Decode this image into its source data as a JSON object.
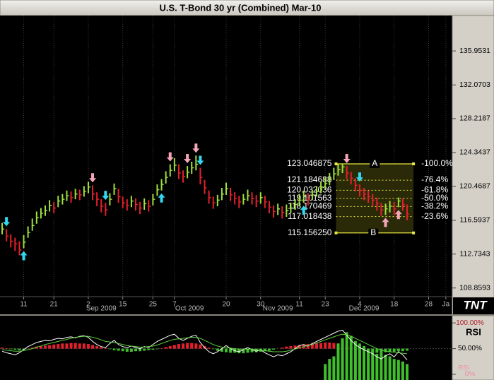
{
  "chart_data": [
    {
      "type": "ohlc",
      "title": "U.S. T-Bond 30 yr (Combined) Mar-10",
      "up_color": "#9fdf3c",
      "down_color": "#e3202c",
      "ylim": [
        107.87,
        140.0
      ],
      "yticks": [
        135.9531,
        132.0703,
        128.2187,
        124.3437,
        120.4687,
        116.5937,
        112.7343,
        108.8593
      ],
      "xlim": [
        -0.5,
        104.5
      ],
      "xticks": [
        {
          "value": 5,
          "label": "11"
        },
        {
          "value": 12,
          "label": "21"
        },
        {
          "value": 20,
          "label": "2"
        },
        {
          "value": 28,
          "label": "15"
        },
        {
          "value": 35,
          "label": "25"
        },
        {
          "value": 40,
          "label": "7"
        },
        {
          "value": 52,
          "label": "20"
        },
        {
          "value": 60,
          "label": "30"
        },
        {
          "value": 69,
          "label": "11"
        },
        {
          "value": 75,
          "label": "23"
        },
        {
          "value": 83,
          "label": "4"
        },
        {
          "value": 91,
          "label": "18"
        },
        {
          "value": 99,
          "label": "28"
        },
        {
          "value": 103,
          "label": "Ja"
        }
      ],
      "month_labels": [
        {
          "value": 23,
          "label": "Sep 2009"
        },
        {
          "value": 43.5,
          "label": "Oct 2009"
        },
        {
          "value": 64,
          "label": "Nov 2009"
        },
        {
          "value": 84,
          "label": "Dec 2009"
        }
      ],
      "grid": true,
      "close": [
        115.6,
        114.8,
        114.2,
        113.9,
        113.2,
        114.1,
        115.2,
        116.0,
        116.9,
        117.4,
        117.7,
        118.3,
        118.0,
        118.8,
        119.0,
        119.4,
        119.2,
        119.6,
        119.5,
        119.9,
        120.4,
        119.6,
        119.0,
        118.2,
        117.8,
        119.0,
        120.2,
        119.3,
        118.6,
        118.3,
        118.8,
        118.4,
        118.0,
        118.5,
        118.2,
        119.0,
        120.1,
        120.7,
        121.5,
        122.3,
        122.9,
        122.0,
        121.6,
        122.1,
        122.6,
        123.0,
        121.5,
        120.3,
        119.2,
        118.6,
        118.9,
        119.6,
        120.2,
        119.5,
        119.1,
        118.7,
        119.0,
        119.4,
        119.1,
        118.8,
        119.2,
        118.7,
        118.1,
        117.6,
        117.9,
        117.5,
        117.7,
        118.0,
        118.4,
        118.9,
        119.3,
        119.0,
        119.5,
        119.9,
        120.4,
        120.8,
        121.3,
        121.9,
        122.4,
        122.7,
        122.0,
        121.4,
        120.6,
        120.0,
        119.6,
        119.3,
        118.9,
        118.5,
        117.8,
        117.9,
        118.2,
        117.9,
        118.8,
        118.4,
        117.3
      ],
      "high": [
        116.3,
        115.6,
        115.0,
        114.6,
        114.2,
        114.9,
        115.9,
        116.8,
        117.6,
        118.0,
        118.3,
        118.9,
        118.7,
        119.4,
        119.6,
        120.0,
        119.9,
        120.2,
        120.1,
        120.5,
        121.0,
        120.6,
        119.8,
        119.0,
        118.6,
        119.7,
        120.8,
        120.2,
        119.3,
        119.0,
        119.4,
        119.1,
        118.7,
        119.1,
        118.9,
        119.6,
        120.7,
        121.3,
        122.2,
        123.0,
        123.7,
        123.0,
        122.3,
        122.8,
        123.3,
        124.0,
        122.6,
        121.2,
        120.0,
        119.3,
        119.5,
        120.3,
        120.9,
        120.3,
        119.8,
        119.4,
        119.6,
        120.1,
        119.8,
        119.5,
        119.8,
        119.4,
        118.8,
        118.3,
        118.5,
        118.2,
        118.4,
        118.6,
        119.0,
        119.6,
        120.0,
        119.7,
        120.1,
        120.5,
        121.0,
        121.5,
        122.0,
        122.6,
        123.0,
        123.1,
        122.8,
        122.1,
        121.4,
        120.7,
        120.3,
        120.0,
        119.6,
        119.2,
        118.6,
        118.5,
        118.8,
        118.7,
        119.2,
        119.1,
        118.4
      ],
      "low": [
        115.0,
        114.2,
        113.5,
        113.1,
        112.6,
        113.4,
        114.6,
        115.4,
        116.2,
        116.8,
        117.1,
        117.6,
        117.4,
        118.1,
        118.4,
        118.8,
        118.6,
        119.0,
        118.9,
        119.3,
        119.7,
        118.9,
        118.2,
        117.5,
        117.1,
        118.3,
        119.5,
        118.6,
        118.0,
        117.7,
        118.1,
        117.7,
        117.3,
        117.8,
        117.6,
        118.3,
        119.4,
        120.0,
        120.8,
        121.6,
        122.2,
        121.3,
        120.9,
        121.4,
        121.9,
        122.3,
        120.7,
        119.6,
        118.5,
        117.9,
        118.2,
        118.9,
        119.5,
        118.8,
        118.4,
        118.0,
        118.4,
        118.8,
        118.4,
        118.1,
        118.5,
        118.0,
        117.4,
        116.9,
        117.2,
        116.8,
        117.0,
        117.4,
        117.8,
        118.2,
        118.6,
        118.3,
        118.9,
        119.3,
        119.7,
        120.2,
        120.6,
        121.2,
        121.7,
        122.0,
        121.3,
        120.7,
        119.9,
        119.3,
        118.9,
        118.6,
        118.2,
        117.7,
        117.1,
        117.2,
        117.5,
        117.2,
        118.1,
        117.7,
        116.6
      ],
      "signals": [
        {
          "index": 1,
          "direction": "down",
          "color": "#30d8f0"
        },
        {
          "index": 5,
          "direction": "up",
          "color": "#30d8f0"
        },
        {
          "index": 21,
          "direction": "down",
          "color": "#f4a6b8"
        },
        {
          "index": 24,
          "direction": "down",
          "color": "#30d8f0"
        },
        {
          "index": 37,
          "direction": "up",
          "color": "#30d8f0"
        },
        {
          "index": 39,
          "direction": "down",
          "color": "#f4a6b8"
        },
        {
          "index": 43,
          "direction": "down",
          "color": "#f4a6b8"
        },
        {
          "index": 45,
          "direction": "down",
          "color": "#f4a6b8"
        },
        {
          "index": 46,
          "direction": "down",
          "color": "#30d8f0"
        },
        {
          "index": 70,
          "direction": "up",
          "color": "#30d8f0"
        },
        {
          "index": 80,
          "direction": "down",
          "color": "#f4a6b8"
        },
        {
          "index": 83,
          "direction": "down",
          "color": "#30d8f0"
        },
        {
          "index": 89,
          "direction": "up",
          "color": "#f4a6b8"
        },
        {
          "index": 92,
          "direction": "up",
          "color": "#f4a6b8"
        }
      ],
      "fib": {
        "from": 78,
        "to": 95,
        "start_label": "A",
        "end_label": "B",
        "color": "#e8e840",
        "levels": [
          {
            "value": 123.046875,
            "label": "123.046875",
            "pct": {
              "value": -100,
              "label": "-100.0%"
            }
          },
          {
            "value": 121.184688,
            "label": "121.184688",
            "pct": {
              "value": -76.4,
              "label": "-76.4%"
            }
          },
          {
            "value": 120.032036,
            "label": "120.032036",
            "pct": {
              "value": -61.8,
              "label": "-61.8%"
            }
          },
          {
            "value": 119.101563,
            "label": "119.101563",
            "pct": {
              "value": -50,
              "label": "-50.0%"
            }
          },
          {
            "value": 118.170469,
            "label": "118.170469",
            "pct": {
              "value": -38.2,
              "label": "-38.2%"
            }
          },
          {
            "value": 117.018438,
            "label": "117.018438",
            "pct": {
              "value": -23.6,
              "label": "-23.6%"
            }
          },
          {
            "value": 115.15625,
            "label": "115.156250"
          }
        ]
      },
      "logo": "TNT"
    },
    {
      "type": "indicator",
      "label": "RSI",
      "legend": "RSI",
      "ylim": [
        -11,
        114
      ],
      "yticks": [
        {
          "value": 100,
          "label": "100.00%"
        },
        {
          "value": 50,
          "label": "50.00%"
        },
        {
          "value": 0,
          "label": "0%"
        }
      ],
      "histogram": {
        "up_color": "#e3202c",
        "down_color": "#3fbf2c",
        "values": [
          52,
          51,
          49,
          48,
          47,
          48,
          50,
          52,
          54,
          55,
          56,
          57,
          58,
          59,
          60,
          60,
          61,
          61,
          60,
          60,
          59,
          57,
          55,
          53,
          51,
          49,
          47,
          46,
          45,
          44,
          44,
          45,
          45,
          46,
          47,
          48,
          49,
          51,
          53,
          55,
          57,
          59,
          60,
          61,
          61,
          60,
          58,
          55,
          52,
          49,
          46,
          44,
          43,
          42,
          42,
          41,
          41,
          42,
          43,
          43,
          44,
          45,
          46,
          48,
          50,
          52,
          54,
          55,
          56,
          57,
          58,
          59,
          60,
          61,
          61,
          62,
          62,
          61,
          60,
          58,
          56,
          53,
          50,
          47,
          45,
          44,
          43,
          42,
          42,
          43,
          43,
          44,
          45,
          45,
          46
        ]
      },
      "volume": {
        "color": "#3fbf2c",
        "values": [
          null,
          null,
          null,
          null,
          null,
          null,
          null,
          null,
          null,
          null,
          null,
          null,
          null,
          null,
          null,
          null,
          null,
          null,
          null,
          null,
          null,
          null,
          null,
          null,
          null,
          null,
          null,
          null,
          null,
          null,
          null,
          null,
          null,
          null,
          null,
          null,
          null,
          null,
          null,
          null,
          null,
          null,
          null,
          null,
          null,
          null,
          null,
          null,
          null,
          null,
          null,
          null,
          null,
          null,
          null,
          null,
          null,
          null,
          null,
          null,
          null,
          null,
          null,
          null,
          null,
          null,
          null,
          null,
          null,
          null,
          null,
          null,
          null,
          null,
          null,
          20,
          30,
          35,
          60,
          70,
          82,
          75,
          65,
          60,
          55,
          50,
          45,
          40,
          42,
          38,
          35,
          30,
          28,
          25,
          20
        ]
      },
      "lines": [
        {
          "color": "#ffffff",
          "values": [
            45,
            42,
            40,
            38,
            42,
            48,
            54,
            58,
            62,
            64,
            66,
            65,
            68,
            70,
            69,
            72,
            73,
            71,
            74,
            75,
            72,
            64,
            58,
            54,
            52,
            60,
            66,
            58,
            54,
            52,
            55,
            52,
            50,
            54,
            52,
            58,
            64,
            68,
            72,
            76,
            78,
            70,
            66,
            70,
            74,
            76,
            62,
            52,
            44,
            40,
            44,
            50,
            56,
            50,
            46,
            44,
            48,
            52,
            48,
            45,
            48,
            42,
            38,
            34,
            38,
            36,
            40,
            44,
            50,
            56,
            58,
            55,
            60,
            64,
            68,
            72,
            76,
            80,
            84,
            86,
            76,
            66,
            58,
            52,
            48,
            44,
            40,
            34,
            30,
            36,
            40,
            34,
            44,
            38,
            28
          ]
        },
        {
          "color": "#5ccf3c",
          "values": [
            48,
            47,
            46,
            45,
            45,
            46,
            48,
            50,
            53,
            55,
            58,
            60,
            62,
            64,
            66,
            68,
            70,
            72,
            73,
            74,
            74,
            72,
            70,
            67,
            64,
            63,
            62,
            60,
            58,
            56,
            55,
            54,
            53,
            53,
            54,
            55,
            57,
            60,
            63,
            66,
            68,
            69,
            70,
            71,
            72,
            72,
            70,
            66,
            62,
            58,
            55,
            53,
            52,
            51,
            50,
            49,
            49,
            49,
            49,
            48,
            47,
            46,
            45,
            44,
            44,
            44,
            45,
            47,
            49,
            52,
            54,
            56,
            58,
            61,
            64,
            67,
            70,
            73,
            76,
            78,
            77,
            74,
            70,
            66,
            62,
            58,
            54,
            50,
            47,
            45,
            44,
            43,
            42,
            41,
            40
          ]
        }
      ]
    }
  ]
}
